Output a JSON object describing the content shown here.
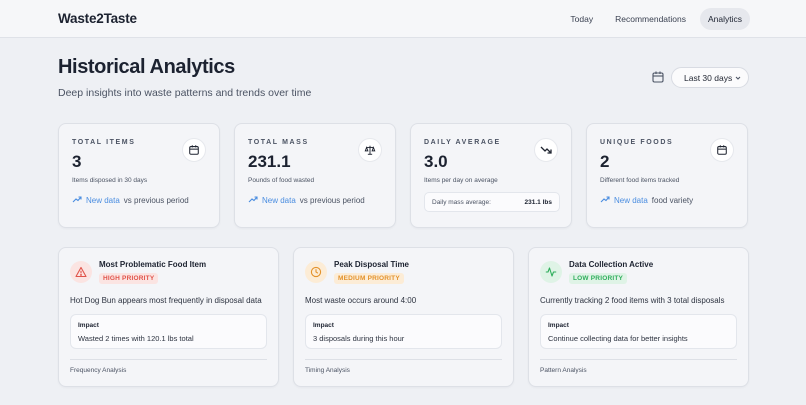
{
  "app": {
    "name": "Waste2Taste"
  },
  "nav": [
    {
      "label": "Today"
    },
    {
      "label": "Recommendations"
    },
    {
      "label": "Analytics"
    }
  ],
  "page": {
    "title": "Historical Analytics",
    "subtitle": "Deep insights into waste patterns and trends over time"
  },
  "range": {
    "selected": "Last 30 days"
  },
  "stats": [
    {
      "label": "TOTAL ITEMS",
      "value": "3",
      "desc": "Items disposed in 30 days",
      "trend_link": "New data",
      "trend_text": "vs previous period",
      "icon": "calendar-icon"
    },
    {
      "label": "TOTAL MASS",
      "value": "231.1",
      "desc": "Pounds of food wasted",
      "trend_link": "New data",
      "trend_text": "vs previous period",
      "icon": "scale-icon"
    },
    {
      "label": "DAILY AVERAGE",
      "value": "3.0",
      "desc": "Items per day on average",
      "mass_avg_label": "Daily mass average:",
      "mass_avg_value": "231.1 lbs",
      "icon": "trending-down-icon"
    },
    {
      "label": "UNIQUE FOODS",
      "value": "2",
      "desc": "Different food items tracked",
      "trend_link": "New data",
      "trend_text": "food variety",
      "icon": "calendar-icon"
    }
  ],
  "insights": [
    {
      "title": "Most Problematic Food Item",
      "badge": "HIGH PRIORITY",
      "text": "Hot Dog Bun appears most frequently in disposal data",
      "impact_label": "Impact",
      "impact_text": "Wasted 2 times with 120.1 lbs total",
      "footer": "Frequency Analysis",
      "icon": "warning-icon"
    },
    {
      "title": "Peak Disposal Time",
      "badge": "MEDIUM PRIORITY",
      "text": "Most waste occurs around 4:00",
      "impact_label": "Impact",
      "impact_text": "3 disposals during this hour",
      "footer": "Timing Analysis",
      "icon": "clock-icon"
    },
    {
      "title": "Data Collection Active",
      "badge": "LOW PRIORITY",
      "text": "Currently tracking 2 food items with 3 total disposals",
      "impact_label": "Impact",
      "impact_text": "Continue collecting data for better insights",
      "footer": "Pattern Analysis",
      "icon": "activity-icon"
    }
  ],
  "colors": {
    "trend_blue": "#4a8de0",
    "high": "#e0534a",
    "medium": "#e3922b",
    "low": "#2fae5c"
  }
}
